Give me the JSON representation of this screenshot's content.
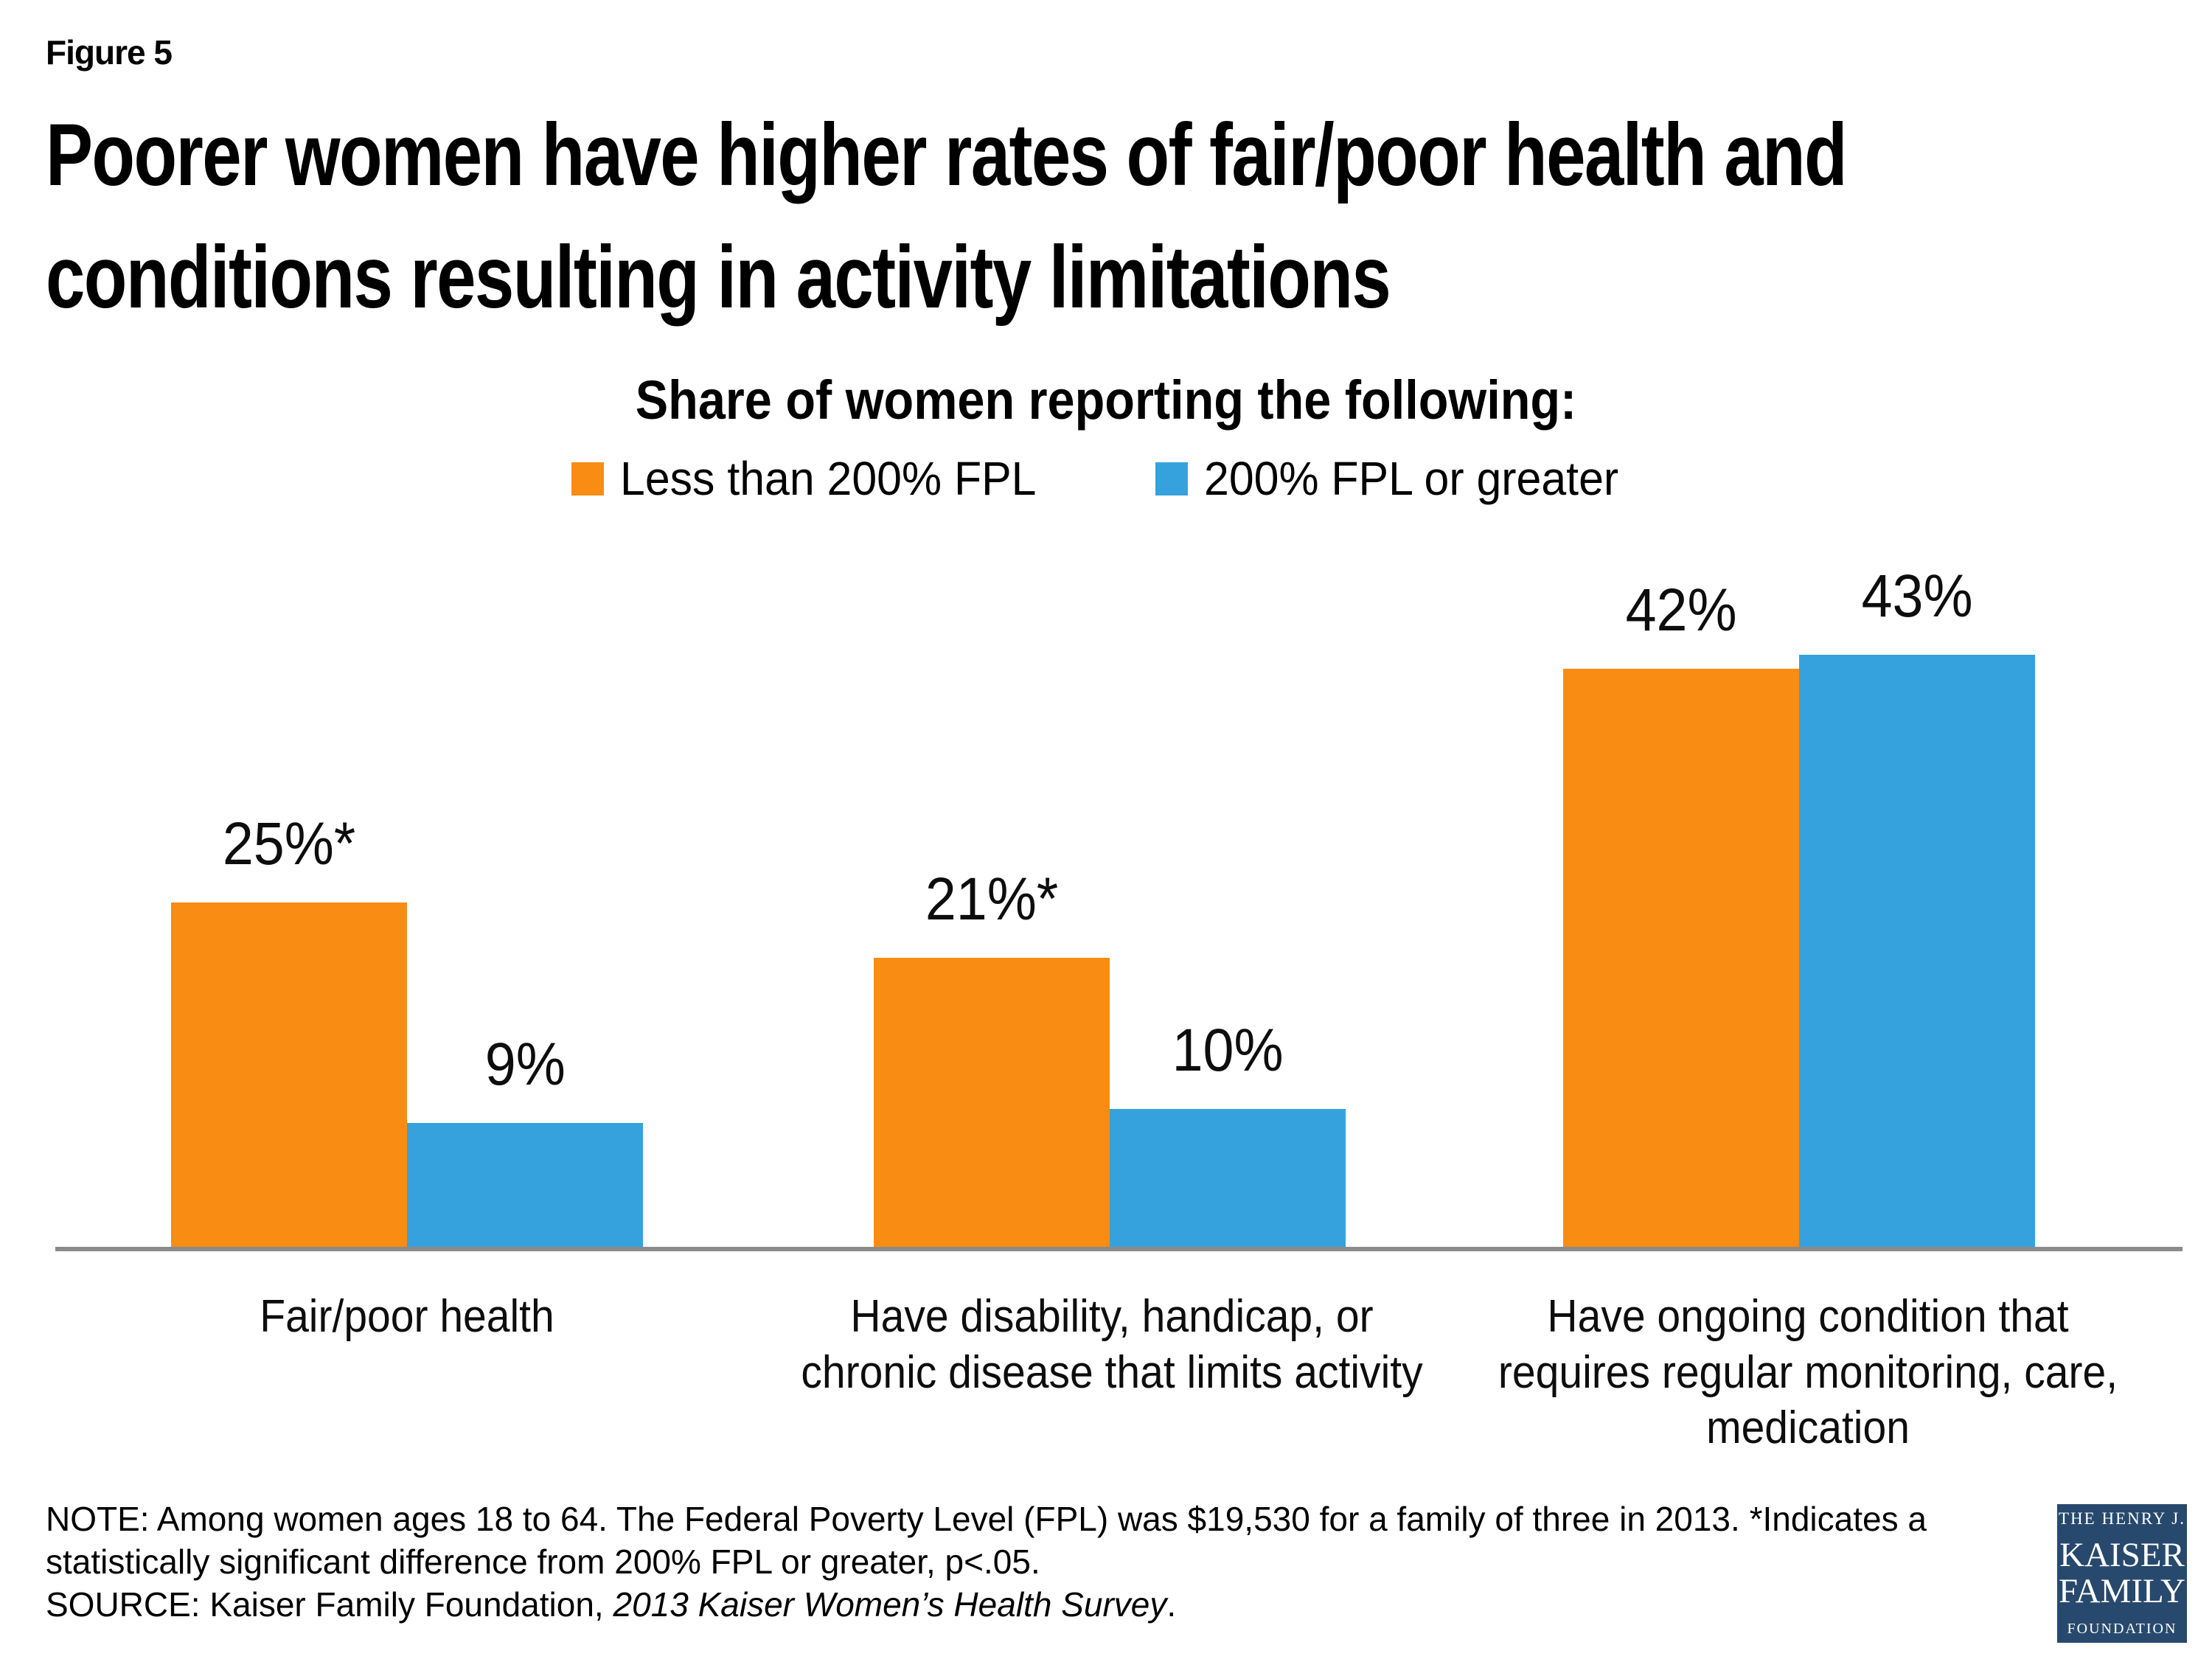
{
  "figure_label": "Figure 5",
  "title_line1": "Poorer women have higher rates of fair/poor health and",
  "title_line2": "conditions resulting in activity limitations",
  "subtitle": "Share of women reporting the following:",
  "colors": {
    "orange": "#F98C13",
    "blue": "#35A2DD",
    "axis_gray": "#8A8A8A",
    "logo_navy": "#27496D"
  },
  "legend": {
    "items": [
      {
        "label": "Less than 200% FPL",
        "color": "#F98C13"
      },
      {
        "label": "200% FPL or greater",
        "color": "#35A2DD"
      }
    ]
  },
  "chart_data": {
    "type": "bar",
    "title": "Share of women reporting the following:",
    "categories": [
      "Fair/poor health",
      "Have disability, handicap, or\nchronic disease that limits activity",
      "Have ongoing condition that\nrequires regular monitoring, care,\nmedication"
    ],
    "series": [
      {
        "name": "Less than 200% FPL",
        "color": "#F98C13",
        "values": [
          25,
          21,
          42
        ],
        "value_labels": [
          "25%*",
          "21%*",
          "42%"
        ]
      },
      {
        "name": "200% FPL or greater",
        "color": "#35A2DD",
        "values": [
          9,
          10,
          43
        ],
        "value_labels": [
          "9%",
          "10%",
          "43%"
        ]
      }
    ],
    "ylim": [
      0,
      50
    ],
    "grid": false,
    "legend_position": "top",
    "annotations": "* indicates statistically significant difference from 200% FPL or greater, p<.05"
  },
  "note": {
    "line1": "NOTE: Among women ages 18 to 64. The Federal Poverty Level (FPL) was $19,530 for a family of three in 2013. *Indicates a",
    "line2": "statistically significant difference from 200% FPL or greater, p<.05.",
    "source_prefix": "SOURCE: Kaiser Family Foundation, ",
    "source_italic": "2013 Kaiser Women’s Health Survey",
    "source_suffix": "."
  },
  "logo": {
    "line1": "THE HENRY J.",
    "line2": "KAISER",
    "line3": "FAMILY",
    "line4": "FOUNDATION"
  }
}
